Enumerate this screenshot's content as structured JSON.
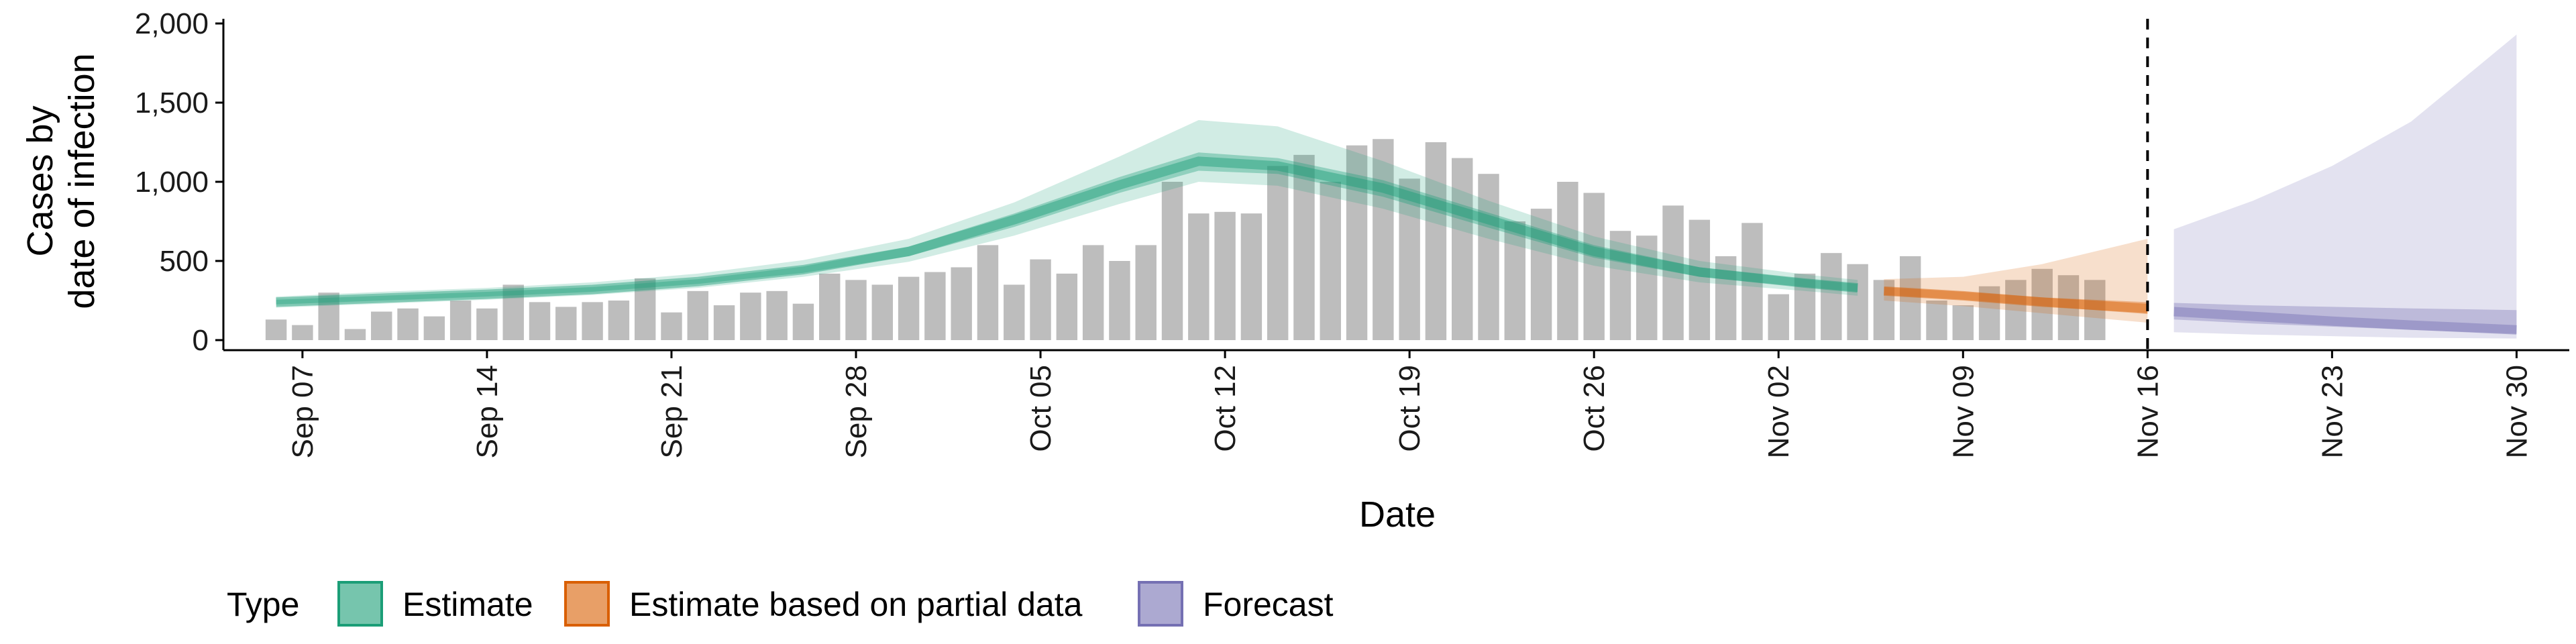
{
  "chart_data": {
    "type": "bar",
    "xlabel": "Date",
    "ylabel_lines": [
      "Cases by",
      "date of infection"
    ],
    "ylim": [
      0,
      2000
    ],
    "y_ticks": [
      0,
      500,
      1000,
      1500,
      2000
    ],
    "y_tick_labels": [
      "0",
      "500",
      "1,000",
      "1,500",
      "2,000"
    ],
    "x_range": [
      "2020-09-04",
      "2020-12-02"
    ],
    "x_ticks": [
      {
        "date": "2020-09-07",
        "label": "Sep 07"
      },
      {
        "date": "2020-09-14",
        "label": "Sep 14"
      },
      {
        "date": "2020-09-21",
        "label": "Sep 21"
      },
      {
        "date": "2020-09-28",
        "label": "Sep 28"
      },
      {
        "date": "2020-10-05",
        "label": "Oct 05"
      },
      {
        "date": "2020-10-12",
        "label": "Oct 12"
      },
      {
        "date": "2020-10-19",
        "label": "Oct 19"
      },
      {
        "date": "2020-10-26",
        "label": "Oct 26"
      },
      {
        "date": "2020-11-02",
        "label": "Nov 02"
      },
      {
        "date": "2020-11-09",
        "label": "Nov 09"
      },
      {
        "date": "2020-11-16",
        "label": "Nov 16"
      },
      {
        "date": "2020-11-23",
        "label": "Nov 23"
      },
      {
        "date": "2020-11-30",
        "label": "Nov 30"
      }
    ],
    "grid": false,
    "vline_date": "2020-11-16",
    "bar_color": "#bdbdbd",
    "observed_cases": {
      "start_date": "2020-09-06",
      "values": [
        130,
        95,
        300,
        70,
        180,
        200,
        150,
        250,
        200,
        350,
        240,
        210,
        240,
        250,
        390,
        175,
        310,
        220,
        300,
        310,
        230,
        420,
        380,
        350,
        400,
        430,
        460,
        600,
        350,
        510,
        420,
        600,
        500,
        600,
        1000,
        800,
        810,
        800,
        1100,
        1170,
        1000,
        1230,
        1270,
        1020,
        1250,
        1150,
        1050,
        750,
        830,
        1000,
        930,
        690,
        660,
        850,
        760,
        530,
        740,
        290,
        420,
        550,
        480,
        380,
        530,
        250,
        220,
        340,
        380,
        450,
        410,
        380
      ]
    },
    "series": [
      {
        "name": "Estimate",
        "color": "#1b9e77",
        "dates": [
          "2020-09-06",
          "2020-09-10",
          "2020-09-14",
          "2020-09-18",
          "2020-09-22",
          "2020-09-26",
          "2020-09-30",
          "2020-10-04",
          "2020-10-08",
          "2020-10-11",
          "2020-10-14",
          "2020-10-18",
          "2020-10-22",
          "2020-10-26",
          "2020-10-30",
          "2020-11-03",
          "2020-11-05"
        ],
        "median": [
          240,
          265,
          290,
          320,
          370,
          445,
          560,
          760,
          980,
          1130,
          1100,
          960,
          760,
          560,
          430,
          360,
          330
        ],
        "lower_50": [
          225,
          250,
          275,
          305,
          355,
          425,
          530,
          715,
          930,
          1070,
          1050,
          905,
          710,
          520,
          400,
          335,
          305
        ],
        "upper_50": [
          255,
          280,
          305,
          335,
          385,
          465,
          590,
          800,
          1030,
          1185,
          1150,
          1010,
          805,
          600,
          460,
          385,
          355
        ],
        "lower_90": [
          205,
          230,
          255,
          285,
          330,
          400,
          495,
          660,
          860,
          1000,
          975,
          830,
          640,
          470,
          365,
          310,
          280
        ],
        "upper_90": [
          275,
          305,
          330,
          365,
          420,
          505,
          640,
          870,
          1160,
          1390,
          1350,
          1130,
          880,
          655,
          500,
          415,
          380
        ]
      },
      {
        "name": "Estimate based on partial data",
        "color": "#d95f02",
        "dates": [
          "2020-11-06",
          "2020-11-09",
          "2020-11-12",
          "2020-11-16"
        ],
        "median": [
          310,
          280,
          240,
          200
        ],
        "lower_50": [
          285,
          255,
          215,
          165
        ],
        "upper_50": [
          335,
          305,
          270,
          240
        ],
        "lower_90": [
          250,
          215,
          170,
          110
        ],
        "upper_90": [
          385,
          400,
          480,
          640
        ]
      },
      {
        "name": "Forecast",
        "color": "#7570b3",
        "dates": [
          "2020-11-17",
          "2020-11-20",
          "2020-11-23",
          "2020-11-26",
          "2020-11-30"
        ],
        "median": [
          180,
          150,
          120,
          95,
          65
        ],
        "lower_50": [
          130,
          105,
          85,
          65,
          40
        ],
        "upper_50": [
          235,
          220,
          210,
          200,
          190
        ],
        "lower_90": [
          50,
          35,
          25,
          15,
          10
        ],
        "upper_90": [
          700,
          880,
          1100,
          1380,
          1930
        ]
      }
    ],
    "legend": {
      "position": "bottom",
      "title": "Type",
      "entries": [
        "Estimate",
        "Estimate based on partial data",
        "Forecast"
      ]
    }
  }
}
